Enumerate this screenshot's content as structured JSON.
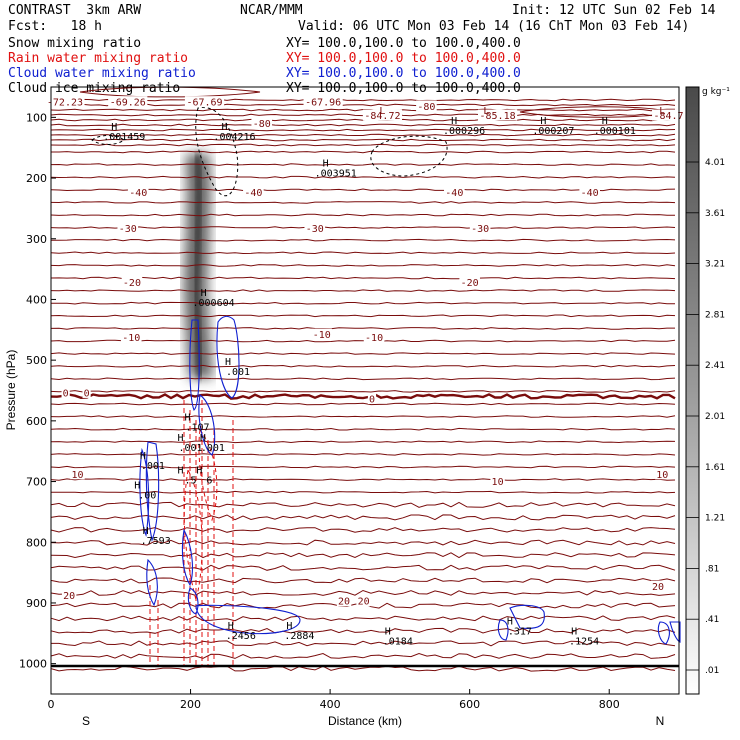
{
  "header": {
    "model": "CONTRAST  3km ARW",
    "org": "NCAR/MMM",
    "init": "Init: 12 UTC Sun 02 Feb 14",
    "fcst": "Fcst:   18 h",
    "valid": "Valid: 06 UTC Mon 03 Feb 14 (16 ChT Mon 03 Feb 14)"
  },
  "fields": [
    {
      "label": "Snow mixing ratio",
      "xy": "XY= 100.0,100.0 to 100.0,400.0",
      "color": "#000000"
    },
    {
      "label": "Rain water mixing ratio",
      "xy": "XY= 100.0,100.0 to 100.0,400.0",
      "color": "#e01010"
    },
    {
      "label": "Cloud water mixing ratio",
      "xy": "XY= 100.0,100.0 to 100.0,400.0",
      "color": "#1020d0"
    },
    {
      "label": "Cloud ice mixing ratio",
      "xy": "XY= 100.0,100.0 to 100.0,400.0",
      "color": "#000000"
    }
  ],
  "colors": {
    "temperature": "#7a0c0c",
    "rain": "#e01010",
    "cloud_water": "#1020d0",
    "ice": "#000000",
    "ground": "#000000"
  },
  "chart_data": {
    "type": "heatmap",
    "xlabel": "Distance (km)",
    "ylabel": "Pressure (hPa)",
    "xlim": [
      0,
      900
    ],
    "ylim": [
      1050,
      50
    ],
    "x_ticks": [
      0,
      200,
      400,
      600,
      800
    ],
    "y_ticks": [
      100,
      200,
      300,
      400,
      500,
      600,
      700,
      800,
      900,
      1000
    ],
    "x_end_labels": {
      "left": "S",
      "right": "N"
    },
    "colorbar": {
      "unit": "g kg⁻¹",
      "ticks": [
        "4.01",
        "3.61",
        "3.21",
        "2.81",
        "2.41",
        "2.01",
        "1.61",
        "1.21",
        ".81",
        ".41",
        ".01"
      ]
    },
    "temperature_contours": {
      "interval": 5,
      "labels": [
        {
          "text": "-72.23",
          "x": 20,
          "p": 75
        },
        {
          "text": "-69.26",
          "x": 110,
          "p": 75
        },
        {
          "text": "-67.69",
          "x": 220,
          "p": 75
        },
        {
          "text": "-67.96",
          "x": 390,
          "p": 75
        },
        {
          "text": "-80",
          "x": 538,
          "p": 82
        },
        {
          "text": "-84.72",
          "x": 475,
          "p": 97
        },
        {
          "text": "-85.18",
          "x": 640,
          "p": 97
        },
        {
          "text": "-84.7",
          "x": 885,
          "p": 97
        },
        {
          "text": "-80",
          "x": 302,
          "p": 110
        },
        {
          "text": "-40",
          "x": 125,
          "p": 224
        },
        {
          "text": "-40",
          "x": 290,
          "p": 224
        },
        {
          "text": "-40",
          "x": 578,
          "p": 224
        },
        {
          "text": "-40",
          "x": 772,
          "p": 224
        },
        {
          "text": "-30",
          "x": 110,
          "p": 283
        },
        {
          "text": "-30",
          "x": 378,
          "p": 283
        },
        {
          "text": "-30",
          "x": 615,
          "p": 283
        },
        {
          "text": "-20",
          "x": 116,
          "p": 372
        },
        {
          "text": "-20",
          "x": 600,
          "p": 372
        },
        {
          "text": "-10",
          "x": 115,
          "p": 463
        },
        {
          "text": "-10",
          "x": 388,
          "p": 458
        },
        {
          "text": "-10",
          "x": 463,
          "p": 463
        },
        {
          "text": "0",
          "x": 21,
          "p": 554
        },
        {
          "text": "0",
          "x": 51,
          "p": 554
        },
        {
          "text": "0",
          "x": 460,
          "p": 564
        },
        {
          "text": "10",
          "x": 38,
          "p": 688
        },
        {
          "text": "10",
          "x": 640,
          "p": 700
        },
        {
          "text": "10",
          "x": 876,
          "p": 688
        },
        {
          "text": "20",
          "x": 26,
          "p": 888
        },
        {
          "text": "20",
          "x": 420,
          "p": 897
        },
        {
          "text": "20",
          "x": 448,
          "p": 897
        },
        {
          "text": "20",
          "x": 870,
          "p": 873
        }
      ]
    },
    "maxima": [
      {
        "text": ".001459",
        "x": 105,
        "p": 131
      },
      {
        "text": ".004216",
        "x": 263,
        "p": 131
      },
      {
        "text": ".000296",
        "x": 592,
        "p": 121
      },
      {
        "text": ".000207",
        "x": 720,
        "p": 121
      },
      {
        "text": ".000101",
        "x": 808,
        "p": 121
      },
      {
        "text": ".003951",
        "x": 408,
        "p": 191
      },
      {
        "text": ".000604",
        "x": 233,
        "p": 404
      },
      {
        "text": ".001",
        "x": 268,
        "p": 518
      },
      {
        "text": ".001",
        "x": 146,
        "p": 673
      },
      {
        "text": ".00",
        "x": 138,
        "p": 721
      },
      {
        "text": ".7593",
        "x": 150,
        "p": 796
      },
      {
        "text": ".2456",
        "x": 272,
        "p": 953
      },
      {
        "text": ".2884",
        "x": 356,
        "p": 953
      },
      {
        "text": ".0184",
        "x": 497,
        "p": 962
      },
      {
        "text": ".317",
        "x": 672,
        "p": 945
      },
      {
        "text": ".1254",
        "x": 764,
        "p": 962
      },
      {
        "text": ".107",
        "x": 210,
        "p": 609
      },
      {
        "text": ".001",
        "x": 200,
        "p": 643
      },
      {
        "text": ".001",
        "x": 232,
        "p": 643
      },
      {
        "text": ".5",
        "x": 200,
        "p": 697
      },
      {
        "text": "6",
        "x": 227,
        "p": 697
      }
    ],
    "minima": [
      {
        "x": 475,
        "p": 88
      },
      {
        "x": 624,
        "p": 88
      },
      {
        "x": 876,
        "p": 88
      }
    ],
    "snow_plume": [
      {
        "p": 160,
        "x": 210
      },
      {
        "p": 220,
        "x": 212
      },
      {
        "p": 300,
        "x": 210
      },
      {
        "p": 380,
        "x": 207
      },
      {
        "p": 450,
        "x": 210
      },
      {
        "p": 530,
        "x": 215
      }
    ]
  }
}
